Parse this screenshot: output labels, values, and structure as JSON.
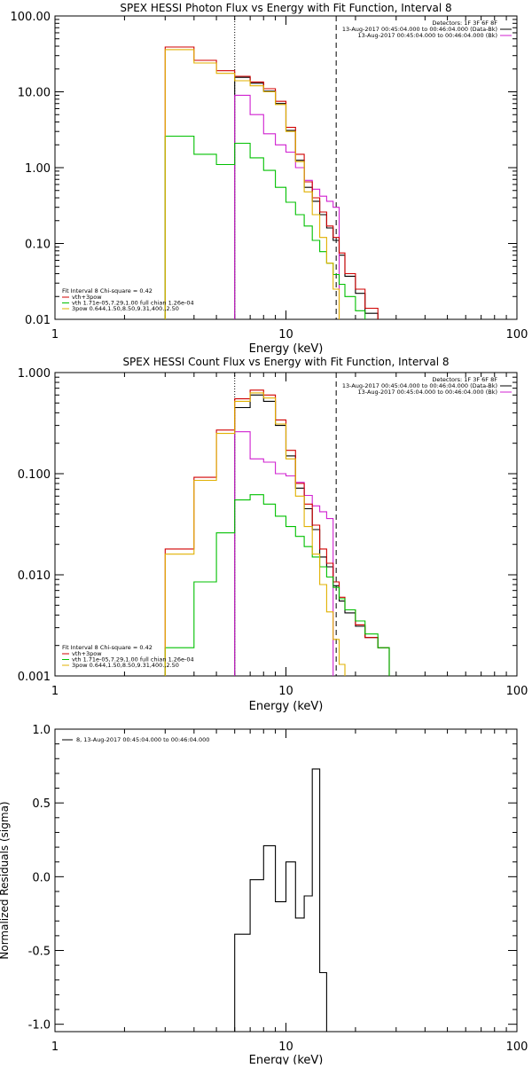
{
  "chart_data": [
    {
      "type": "line",
      "title": "SPEX HESSI Photon Flux vs Energy with Fit Function, Interval 8",
      "xlabel": "Energy (keV)",
      "ylabel": "",
      "xscale": "log",
      "yscale": "log",
      "xlim": [
        1,
        100
      ],
      "ylim": [
        0.01,
        100
      ],
      "x_ticks": [
        "1",
        "10",
        "100"
      ],
      "y_ticks": [
        "0.01",
        "0.10",
        "1.00",
        "10.00",
        "100.00"
      ],
      "vlines": {
        "dotted": 6,
        "dashed": 16.5
      },
      "info_box": [
        "Detectors: 1F 3F 6F 8F",
        "13-Aug-2017 00:45:04.000 to 00:46:04.000 (Data-Bk)",
        "13-Aug-2017 00:45:04.000 to 00:46:04.000 (Bk)"
      ],
      "info_colors": [
        "#000000",
        "#d020d0"
      ],
      "fit_legend": {
        "header": "Fit Interval  8     Chi-square = 0.42",
        "entries": [
          {
            "label": "vth+3pow",
            "color": "#d00000"
          },
          {
            "label": "vth 1.71e-05,7.29,1.00   full chian 1.26e-04",
            "color": "#00c000"
          },
          {
            "label": "3pow 0.644,1.50,8.50,9.31,400.,2.50",
            "color": "#e0b000"
          }
        ]
      },
      "edges": [
        3,
        4,
        5,
        6,
        7,
        8,
        9,
        10,
        11,
        12,
        13,
        14,
        15,
        16,
        17,
        18,
        20,
        22,
        25
      ],
      "series": [
        {
          "name": "",
          "color": "#000000",
          "values": [
            null,
            null,
            null,
            15.5,
            13.0,
            10.2,
            7.0,
            3.1,
            1.25,
            0.55,
            0.36,
            0.24,
            0.16,
            0.11,
            0.07,
            0.037,
            0.022,
            0.012
          ]
        },
        {
          "name": "",
          "color": "#d020d0",
          "values": [
            null,
            null,
            null,
            9.0,
            5.0,
            2.8,
            2.0,
            1.6,
            1.0,
            0.68,
            0.52,
            0.42,
            0.36,
            0.3
          ]
        },
        {
          "name": "vth+3pow",
          "color": "#d00000",
          "values": [
            39,
            26,
            19,
            16,
            13.5,
            11,
            7.5,
            3.4,
            1.5,
            0.65,
            0.4,
            0.26,
            0.17,
            0.12,
            0.075,
            0.04,
            0.025,
            0.014
          ]
        },
        {
          "name": "vth 1.71e-05,7.29,1.00   full chian 1.26e-04",
          "color": "#00c000",
          "values": [
            2.6,
            1.5,
            1.1,
            2.1,
            1.35,
            0.92,
            0.55,
            0.35,
            0.24,
            0.17,
            0.11,
            0.078,
            0.055,
            0.039,
            0.029,
            0.02,
            0.013,
            0.009
          ]
        },
        {
          "name": "3pow 0.644,1.50,8.50,9.31,400.,2.50",
          "color": "#e0b000",
          "values": [
            36,
            24,
            17.5,
            14,
            12,
            10,
            6.8,
            3.0,
            1.2,
            0.48,
            0.24,
            0.12,
            0.055,
            0.025
          ]
        }
      ]
    },
    {
      "type": "line",
      "title": "SPEX HESSI Count Flux vs Energy with Fit Function, Interval 8",
      "xlabel": "Energy (keV)",
      "ylabel": "",
      "xscale": "log",
      "yscale": "log",
      "xlim": [
        1,
        100
      ],
      "ylim": [
        0.001,
        1
      ],
      "x_ticks": [
        "1",
        "10",
        "100"
      ],
      "y_ticks": [
        "0.001",
        "0.010",
        "0.100",
        "1.000"
      ],
      "vlines": {
        "dotted": 6,
        "dashed": 16.5
      },
      "info_box": [
        "Detectors: 1F 3F 6F 8F",
        "13-Aug-2017 00:45:04.000 to 00:46:04.000 (Data-Bk)",
        "13-Aug-2017 00:45:04.000 to 00:46:04.000 (Bk)"
      ],
      "info_colors": [
        "#000000",
        "#d020d0"
      ],
      "fit_legend": {
        "header": "Fit Interval  8     Chi-square = 0.42",
        "entries": [
          {
            "label": "vth+3pow",
            "color": "#d00000"
          },
          {
            "label": "vth 1.71e-05,7.29,1.00   full chian 1.26e-04",
            "color": "#00c000"
          },
          {
            "label": "3pow 0.644,1.50,8.50,9.31,400.,2.50",
            "color": "#e0b000"
          }
        ]
      },
      "edges": [
        3,
        4,
        5,
        6,
        7,
        8,
        9,
        10,
        11,
        12,
        13,
        14,
        15,
        16,
        17,
        18,
        20,
        22,
        25,
        28
      ],
      "series": [
        {
          "name": "",
          "color": "#000000",
          "values": [
            null,
            null,
            null,
            0.45,
            0.6,
            0.52,
            0.3,
            0.15,
            0.072,
            0.045,
            0.028,
            0.015,
            0.012,
            0.0078,
            0.0055,
            0.0042,
            0.0031,
            0.0024,
            0.0019
          ]
        },
        {
          "name": "",
          "color": "#d020d0",
          "values": [
            null,
            null,
            null,
            0.26,
            0.14,
            0.13,
            0.1,
            0.095,
            0.082,
            0.061,
            0.048,
            0.042,
            0.036
          ]
        },
        {
          "name": "vth+3pow",
          "color": "#d00000",
          "values": [
            0.018,
            0.092,
            0.27,
            0.55,
            0.67,
            0.6,
            0.34,
            0.17,
            0.08,
            0.05,
            0.031,
            0.018,
            0.013,
            0.0085,
            0.006,
            0.0045,
            0.0032,
            0.0024,
            0.0019
          ]
        },
        {
          "name": "vth 1.71e-05,7.29,1.00   full chian 1.26e-04",
          "color": "#00c000",
          "values": [
            0.0019,
            0.0085,
            0.026,
            0.055,
            0.062,
            0.05,
            0.038,
            0.03,
            0.024,
            0.019,
            0.015,
            0.012,
            0.0095,
            0.0075,
            0.0058,
            0.0045,
            0.0035,
            0.0026,
            0.0019
          ]
        },
        {
          "name": "3pow 0.644,1.50,8.50,9.31,400.,2.50",
          "color": "#e0b000",
          "values": [
            0.016,
            0.086,
            0.25,
            0.52,
            0.63,
            0.56,
            0.31,
            0.14,
            0.06,
            0.03,
            0.016,
            0.008,
            0.0043,
            0.0023,
            0.0013
          ]
        }
      ]
    },
    {
      "type": "line",
      "title": "",
      "xlabel": "Energy (keV)",
      "ylabel": "Normalized Residuals (sigma)",
      "xscale": "log",
      "yscale": "linear",
      "xlim": [
        1,
        100
      ],
      "ylim": [
        -1.05,
        1.0
      ],
      "x_ticks": [
        "1",
        "10",
        "100"
      ],
      "y_ticks": [
        "-1.0",
        "-0.5",
        "0.0",
        "0.5",
        "1.0"
      ],
      "legend": "8, 13-Aug-2017 00:45:04.000 to 00:46:04.000",
      "edges": [
        6,
        7,
        8,
        9,
        10,
        11,
        12,
        13,
        14,
        15,
        16.5
      ],
      "series": [
        {
          "name": "8, 13-Aug-2017 00:45:04.000 to 00:46:04.000",
          "color": "#000000",
          "values": [
            -0.39,
            -0.02,
            0.21,
            -0.17,
            0.1,
            -0.28,
            -0.13,
            0.73,
            -0.65,
            -1.05
          ]
        }
      ]
    }
  ]
}
